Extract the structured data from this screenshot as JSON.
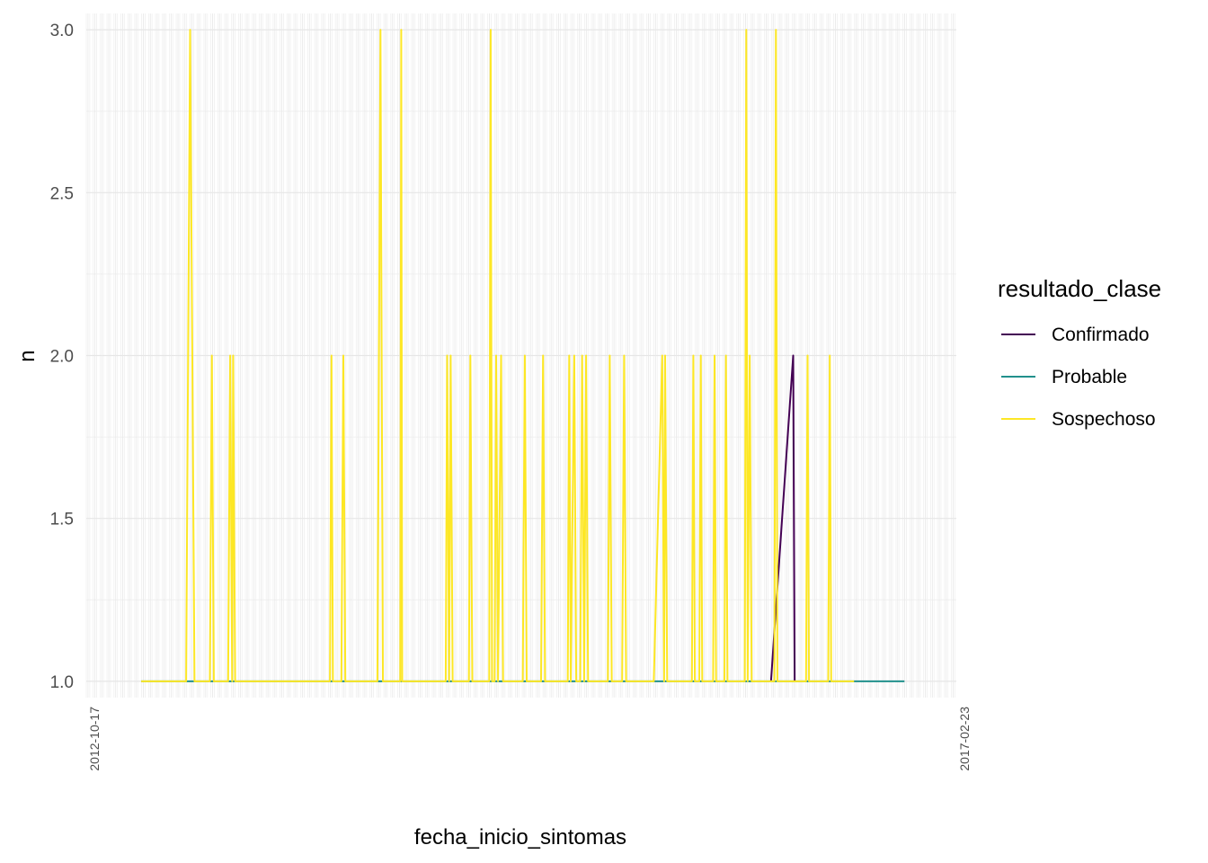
{
  "chart_data": {
    "type": "line",
    "xlabel": "fecha_inicio_sintomas",
    "ylabel": "n",
    "ylim": [
      0.95,
      3.05
    ],
    "y_ticks": [
      "1.0",
      "1.5",
      "2.0",
      "2.5",
      "3.0"
    ],
    "grid": true,
    "legend": {
      "title": "resultado_clase",
      "position": "right"
    },
    "x_ticks_visible": [
      "2012-10-17",
      "2017-02-23"
    ],
    "x_range": [
      "2012-06-28",
      "2017-04-23"
    ],
    "series": [
      {
        "name": "Confirmado",
        "color": "#440154",
        "points": [
          [
            "2016-04-13",
            1
          ],
          [
            "2016-05-28",
            2
          ],
          [
            "2016-05-31",
            1
          ]
        ]
      },
      {
        "name": "Probable",
        "color": "#21908C",
        "points": [
          [
            "2012-10-17",
            1
          ],
          [
            "2017-01-08",
            1
          ]
        ]
      },
      {
        "name": "Sospechoso",
        "color": "#FDE725",
        "points": [
          [
            "2012-10-17",
            1
          ],
          [
            "2013-01-16",
            1
          ],
          [
            "2013-01-24",
            3
          ],
          [
            "2013-02-02",
            1
          ],
          [
            "2013-03-05",
            1
          ],
          [
            "2013-03-09",
            2
          ],
          [
            "2013-03-13",
            1
          ],
          [
            "2013-04-11",
            1
          ],
          [
            "2013-04-15",
            2
          ],
          [
            "2013-04-19",
            1
          ],
          [
            "2013-04-21",
            2
          ],
          [
            "2013-04-25",
            1
          ],
          [
            "2013-11-03",
            1
          ],
          [
            "2013-11-06",
            2
          ],
          [
            "2013-11-09",
            1
          ],
          [
            "2013-11-26",
            1
          ],
          [
            "2013-11-30",
            2
          ],
          [
            "2013-12-04",
            1
          ],
          [
            "2014-02-07",
            1
          ],
          [
            "2014-02-13",
            3
          ],
          [
            "2014-02-18",
            1
          ],
          [
            "2014-03-25",
            1
          ],
          [
            "2014-03-27",
            3
          ],
          [
            "2014-03-29",
            1
          ],
          [
            "2014-06-25",
            1
          ],
          [
            "2014-06-28",
            2
          ],
          [
            "2014-07-02",
            1
          ],
          [
            "2014-07-05",
            2
          ],
          [
            "2014-07-09",
            1
          ],
          [
            "2014-08-11",
            1
          ],
          [
            "2014-08-14",
            2
          ],
          [
            "2014-08-18",
            1
          ],
          [
            "2014-09-21",
            1
          ],
          [
            "2014-09-24",
            3
          ],
          [
            "2014-09-27",
            1
          ],
          [
            "2014-10-02",
            1
          ],
          [
            "2014-10-05",
            2
          ],
          [
            "2014-10-09",
            1
          ],
          [
            "2014-10-15",
            2
          ],
          [
            "2014-10-19",
            1
          ],
          [
            "2014-11-28",
            1
          ],
          [
            "2014-12-02",
            2
          ],
          [
            "2014-12-06",
            1
          ],
          [
            "2015-01-04",
            1
          ],
          [
            "2015-01-08",
            2
          ],
          [
            "2015-01-12",
            1
          ],
          [
            "2015-02-27",
            1
          ],
          [
            "2015-03-02",
            2
          ],
          [
            "2015-03-05",
            1
          ],
          [
            "2015-03-12",
            2
          ],
          [
            "2015-03-16",
            1
          ],
          [
            "2015-03-24",
            1
          ],
          [
            "2015-03-28",
            2
          ],
          [
            "2015-04-01",
            1
          ],
          [
            "2015-04-05",
            2
          ],
          [
            "2015-04-09",
            1
          ],
          [
            "2015-05-19",
            1
          ],
          [
            "2015-05-23",
            2
          ],
          [
            "2015-05-27",
            1
          ],
          [
            "2015-06-17",
            1
          ],
          [
            "2015-06-21",
            2
          ],
          [
            "2015-06-25",
            1
          ],
          [
            "2015-08-20",
            1
          ],
          [
            "2015-09-06",
            2
          ],
          [
            "2015-09-10",
            1
          ],
          [
            "2015-09-12",
            2
          ],
          [
            "2015-09-16",
            1
          ],
          [
            "2015-11-05",
            1
          ],
          [
            "2015-11-08",
            2
          ],
          [
            "2015-11-11",
            1
          ],
          [
            "2015-11-20",
            1
          ],
          [
            "2015-11-23",
            2
          ],
          [
            "2015-11-26",
            1
          ],
          [
            "2015-12-18",
            1
          ],
          [
            "2015-12-21",
            2
          ],
          [
            "2015-12-24",
            1
          ],
          [
            "2016-01-10",
            1
          ],
          [
            "2016-01-13",
            2
          ],
          [
            "2016-01-16",
            1
          ],
          [
            "2016-02-20",
            1
          ],
          [
            "2016-02-23",
            3
          ],
          [
            "2016-02-26",
            1
          ],
          [
            "2016-03-01",
            2
          ],
          [
            "2016-03-05",
            1
          ],
          [
            "2016-04-20",
            1
          ],
          [
            "2016-04-23",
            3
          ],
          [
            "2016-04-26",
            1
          ],
          [
            "2016-06-23",
            1
          ],
          [
            "2016-06-26",
            2
          ],
          [
            "2016-06-29",
            1
          ],
          [
            "2016-08-07",
            1
          ],
          [
            "2016-08-10",
            2
          ],
          [
            "2016-08-13",
            1
          ],
          [
            "2016-09-28",
            1
          ]
        ]
      }
    ]
  }
}
